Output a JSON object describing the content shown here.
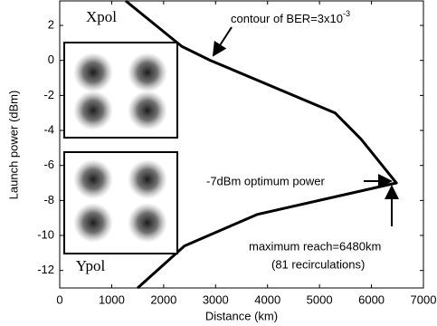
{
  "chart_data": {
    "type": "line",
    "xlabel": "Distance (km)",
    "ylabel": "Launch power (dBm)",
    "xlim": [
      0,
      7000
    ],
    "ylim": [
      -13,
      3.4
    ],
    "xticks": [
      0,
      1000,
      2000,
      3000,
      4000,
      5000,
      6000,
      7000
    ],
    "yticks": [
      -12,
      -10,
      -8,
      -6,
      -4,
      -2,
      0,
      2
    ],
    "series": [
      {
        "color": "#000000",
        "x": [
          1270,
          2350,
          2900,
          5300,
          5800,
          6480,
          3800,
          2400,
          1500
        ],
        "values": [
          3.4,
          0.8,
          0,
          -3,
          -4.5,
          -7,
          -8.8,
          -10.6,
          -13
        ]
      }
    ],
    "annotations": {
      "contour": {
        "text": "contour of BER=3x10",
        "superscript": "-3"
      },
      "optimum": "-7dBm optimum power",
      "reach": "maximum reach=6480km",
      "recirculations": "(81 recirculations)"
    },
    "insets": [
      "Xpol",
      "Ypol"
    ]
  }
}
